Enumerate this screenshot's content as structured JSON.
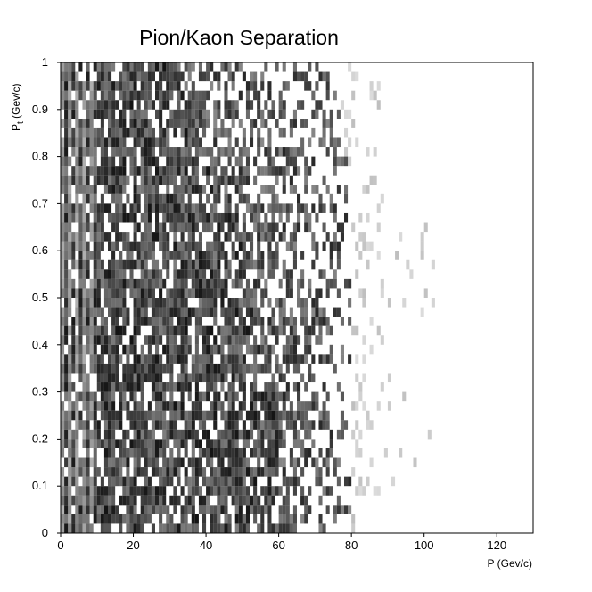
{
  "chart_data": {
    "type": "heatmap",
    "title": "Pion/Kaon Separation",
    "xlabel": "P (Gev/c)",
    "ylabel": "Pt (Gev/c)",
    "ylabel_main": "P",
    "ylabel_sub": "t",
    "ylabel_units": " (Gev/c)",
    "xlim": [
      0,
      130
    ],
    "ylim": [
      0,
      1
    ],
    "x_ticks": [
      "0",
      "20",
      "40",
      "60",
      "80",
      "100",
      "120"
    ],
    "y_ticks": [
      "0",
      "0.1",
      "0.2",
      "0.3",
      "0.4",
      "0.5",
      "0.6",
      "0.7",
      "0.8",
      "0.9",
      "1"
    ],
    "grid": false,
    "legend": "none",
    "colormap": [
      "#ffffff",
      "#000000"
    ],
    "cell_size": {
      "p": 1.0,
      "pt": 0.02
    },
    "density_profile": {
      "description_x_edges": [
        {
          "pt": 0.0,
          "dense_until_p": 55,
          "fade_until_p": 80,
          "sparse_until_p": 102
        },
        {
          "pt": 0.2,
          "dense_until_p": 60,
          "fade_until_p": 80,
          "sparse_until_p": 104
        },
        {
          "pt": 0.4,
          "dense_until_p": 55,
          "fade_until_p": 80,
          "sparse_until_p": 106
        },
        {
          "pt": 0.6,
          "dense_until_p": 50,
          "fade_until_p": 80,
          "sparse_until_p": 108
        },
        {
          "pt": 0.8,
          "dense_until_p": 40,
          "fade_until_p": 78,
          "sparse_until_p": 95
        },
        {
          "pt": 1.0,
          "dense_until_p": 30,
          "fade_until_p": 76,
          "sparse_until_p": 90
        }
      ]
    }
  },
  "colors": {
    "axis": "#000000",
    "background": "#ffffff",
    "mark": "#000000"
  }
}
